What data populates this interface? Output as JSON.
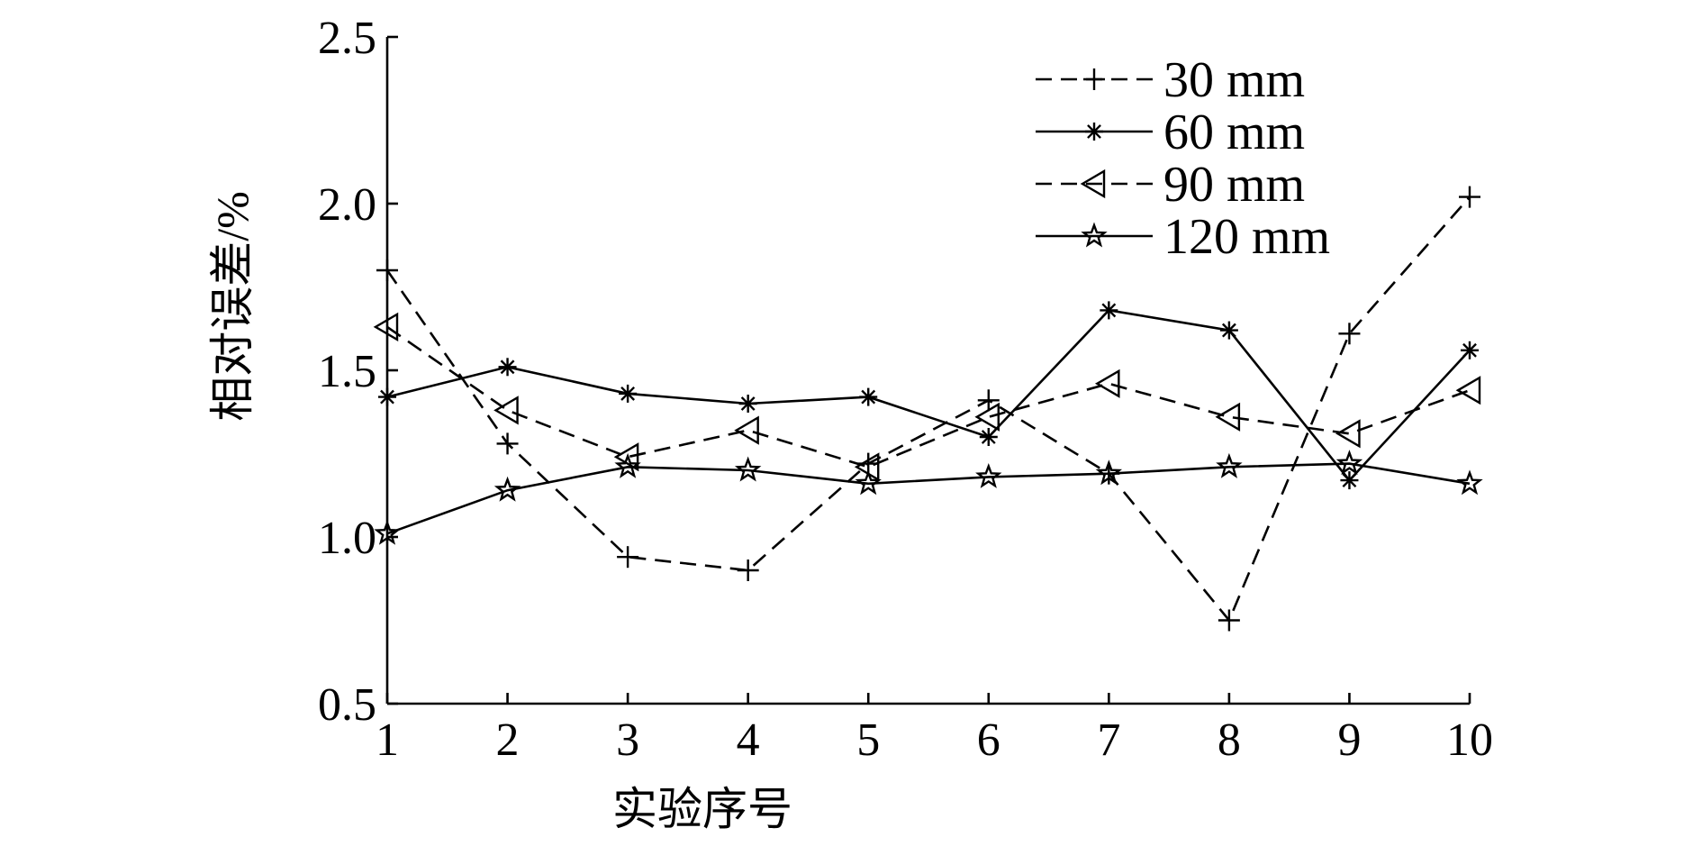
{
  "chart_data": {
    "type": "line",
    "title": "",
    "xlabel": "实验序号",
    "ylabel": "相对误差/%",
    "x": [
      1,
      2,
      3,
      4,
      5,
      6,
      7,
      8,
      9,
      10
    ],
    "xticks": [
      "1",
      "2",
      "3",
      "4",
      "5",
      "6",
      "7",
      "8",
      "9",
      "10"
    ],
    "yticks": [
      "0.5",
      "1.0",
      "1.5",
      "2.0",
      "2.5"
    ],
    "xlim": [
      1,
      10
    ],
    "ylim": [
      0.5,
      2.5
    ],
    "grid": false,
    "legend_position": "top-right",
    "series": [
      {
        "name": "30 mm",
        "line_style": "dashed",
        "marker": "plus",
        "values": [
          1.8,
          1.28,
          0.94,
          0.9,
          1.22,
          1.41,
          1.19,
          0.75,
          1.61,
          2.02
        ]
      },
      {
        "name": "60 mm",
        "line_style": "solid",
        "marker": "asterisk",
        "values": [
          1.42,
          1.51,
          1.43,
          1.4,
          1.42,
          1.3,
          1.68,
          1.62,
          1.17,
          1.56
        ]
      },
      {
        "name": "90 mm",
        "line_style": "dashed",
        "marker": "left-triangle",
        "values": [
          1.63,
          1.38,
          1.24,
          1.32,
          1.21,
          1.36,
          1.46,
          1.36,
          1.31,
          1.44
        ]
      },
      {
        "name": "120 mm",
        "line_style": "solid",
        "marker": "star",
        "values": [
          1.01,
          1.14,
          1.21,
          1.2,
          1.16,
          1.18,
          1.19,
          1.21,
          1.22,
          1.16
        ]
      }
    ]
  }
}
